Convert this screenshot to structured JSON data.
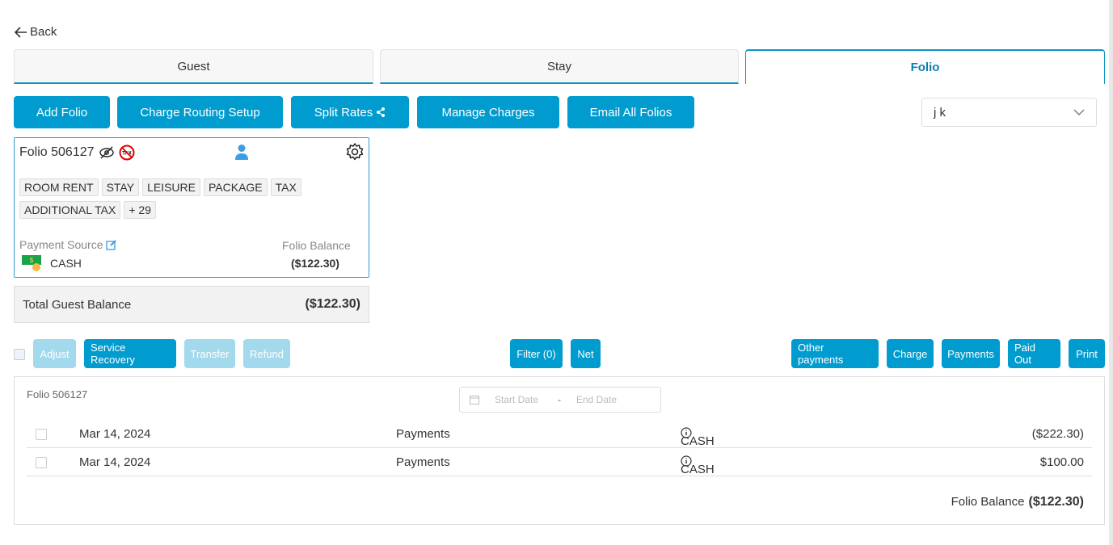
{
  "back_label": "Back",
  "tabs": [
    {
      "label": "Guest"
    },
    {
      "label": "Stay"
    },
    {
      "label": "Folio"
    }
  ],
  "toolbar": {
    "add_folio": "Add Folio",
    "charge_routing": "Charge Routing Setup",
    "split_rates": "Split Rates",
    "manage_charges": "Manage Charges",
    "email_all": "Email All Folios"
  },
  "guest_select": {
    "value": "j k"
  },
  "folio_card": {
    "title": "Folio 506127",
    "chips": [
      "ROOM RENT",
      "STAY",
      "LEISURE",
      "PACKAGE",
      "TAX",
      "ADDITIONAL TAX",
      "+ 29"
    ],
    "payment_source_label": "Payment Source",
    "payment_source": "CASH",
    "balance_label": "Folio Balance",
    "balance": "($122.30)",
    "tax_icon_text": "TAX"
  },
  "total": {
    "label": "Total Guest Balance",
    "value": "($122.30)"
  },
  "actions": {
    "adjust": "Adjust",
    "service_recovery": "Service Recovery",
    "transfer": "Transfer",
    "refund": "Refund",
    "filter": "Filter (0)",
    "net": "Net",
    "other_payments": "Other payments",
    "charge": "Charge",
    "payments": "Payments",
    "paid_out": "Paid Out",
    "print": "Print"
  },
  "panel": {
    "folio_label": "Folio 506127",
    "start_placeholder": "Start Date",
    "end_placeholder": "End Date",
    "date_separator": "-",
    "rows": [
      {
        "date": "Mar 14, 2024",
        "type": "Payments",
        "method": "CASH",
        "amount": "($222.30)"
      },
      {
        "date": "Mar 14, 2024",
        "type": "Payments",
        "method": "CASH",
        "amount": "$100.00"
      }
    ],
    "balance_label": "Folio Balance",
    "balance": "($122.30)"
  },
  "colors": {
    "primary": "#009ccf",
    "disabled": "#a3d9ec"
  }
}
